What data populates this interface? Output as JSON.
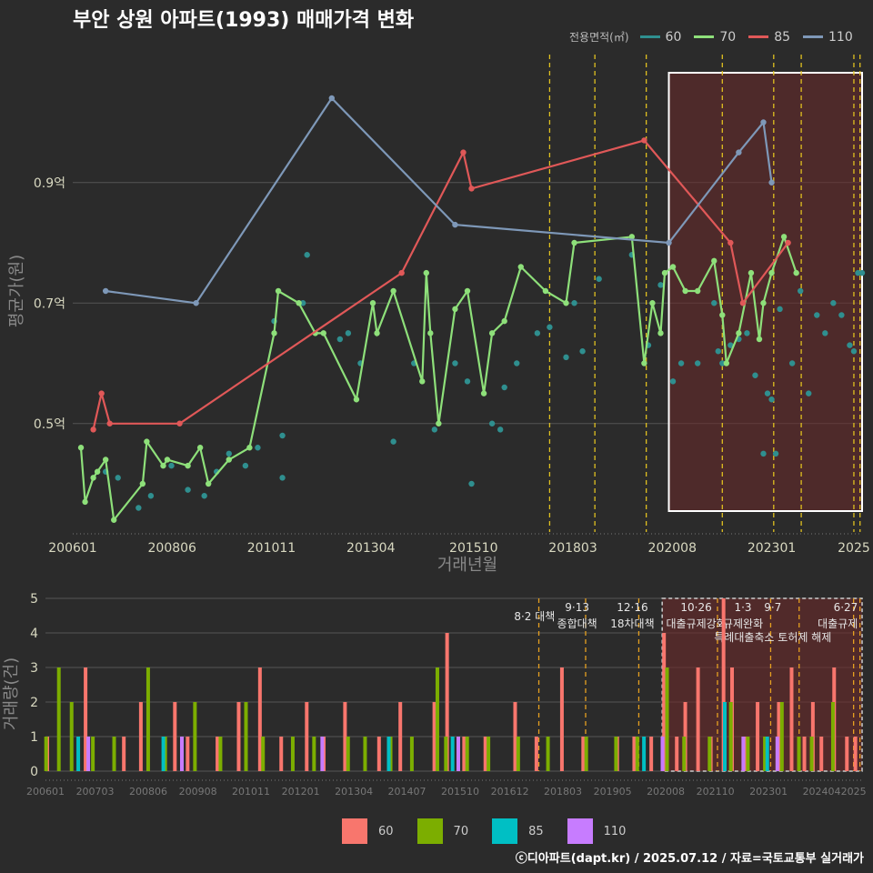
{
  "title": "부안 상원 아파트(1993) 매매가격 변화",
  "footer": "ⓒ디아파트(dapt.kr) / 2025.07.12 / 자료=국토교통부 실거래가",
  "colors": {
    "s60": "#2f8f8f",
    "s70": "#8ee07a",
    "s85": "#e05858",
    "s110": "#7e98b8",
    "b60": "#f8766d",
    "b70": "#7cae00",
    "b85": "#00bfc4",
    "b110": "#c77cff",
    "policy": "#e0c020",
    "highlight": "#6b2a2a",
    "grid": "#555555"
  },
  "legend_top": {
    "title": "전용면적(㎡)",
    "items": [
      "60",
      "70",
      "85",
      "110"
    ]
  },
  "legend_bottom": {
    "items": [
      "60",
      "70",
      "85",
      "110"
    ]
  },
  "chart_data": [
    {
      "type": "line",
      "ylabel": "평균가(원)",
      "xlabel": "거래년월",
      "x_ticks": [
        "200601",
        "200806",
        "201011",
        "201304",
        "201510",
        "201803",
        "202008",
        "202301",
        "2025"
      ],
      "y_ticks": [
        "0.5억",
        "0.7억",
        "0.9억"
      ],
      "ylim": [
        0.32,
        1.12
      ],
      "xlim": [
        2006.0,
        2025.2
      ],
      "highlight_range": [
        2020.5,
        2025.2
      ],
      "policy_lines": [
        2017.6,
        2018.7,
        2019.95,
        2021.8,
        2023.05,
        2023.72,
        2025.0,
        2025.15
      ],
      "series": [
        {
          "name": "60",
          "points": [
            [
              2006.8,
              0.42
            ],
            [
              2007.1,
              0.41
            ],
            [
              2007.6,
              0.36
            ],
            [
              2007.9,
              0.38
            ],
            [
              2008.4,
              0.43
            ],
            [
              2008.8,
              0.39
            ],
            [
              2009.2,
              0.38
            ],
            [
              2009.5,
              0.42
            ],
            [
              2009.8,
              0.45
            ],
            [
              2010.2,
              0.43
            ],
            [
              2010.5,
              0.46
            ],
            [
              2010.9,
              0.67
            ],
            [
              2011.1,
              0.48
            ],
            [
              2011.1,
              0.41
            ],
            [
              2011.6,
              0.7
            ],
            [
              2011.7,
              0.78
            ],
            [
              2012.5,
              0.64
            ],
            [
              2012.7,
              0.65
            ],
            [
              2013.0,
              0.6
            ],
            [
              2013.8,
              0.47
            ],
            [
              2014.3,
              0.6
            ],
            [
              2014.8,
              0.49
            ],
            [
              2015.3,
              0.6
            ],
            [
              2015.6,
              0.57
            ],
            [
              2015.7,
              0.4
            ],
            [
              2016.2,
              0.5
            ],
            [
              2016.4,
              0.49
            ],
            [
              2016.5,
              0.56
            ],
            [
              2016.8,
              0.6
            ],
            [
              2017.3,
              0.65
            ],
            [
              2017.6,
              0.66
            ],
            [
              2018.0,
              0.61
            ],
            [
              2018.2,
              0.7
            ],
            [
              2018.4,
              0.62
            ],
            [
              2018.8,
              0.74
            ],
            [
              2019.6,
              0.78
            ],
            [
              2020.0,
              0.63
            ],
            [
              2020.3,
              0.73
            ],
            [
              2020.6,
              0.57
            ],
            [
              2020.8,
              0.6
            ],
            [
              2021.2,
              0.6
            ],
            [
              2021.6,
              0.7
            ],
            [
              2021.7,
              0.62
            ],
            [
              2021.8,
              0.6
            ],
            [
              2022.0,
              0.63
            ],
            [
              2022.2,
              0.64
            ],
            [
              2022.4,
              0.65
            ],
            [
              2022.6,
              0.58
            ],
            [
              2022.8,
              0.45
            ],
            [
              2022.9,
              0.55
            ],
            [
              2023.0,
              0.54
            ],
            [
              2023.1,
              0.45
            ],
            [
              2023.2,
              0.69
            ],
            [
              2023.5,
              0.6
            ],
            [
              2023.7,
              0.72
            ],
            [
              2023.9,
              0.55
            ],
            [
              2024.1,
              0.68
            ],
            [
              2024.3,
              0.65
            ],
            [
              2024.5,
              0.7
            ],
            [
              2024.7,
              0.68
            ],
            [
              2024.9,
              0.63
            ],
            [
              2025.0,
              0.62
            ],
            [
              2025.1,
              0.75
            ],
            [
              2025.2,
              0.75
            ]
          ]
        },
        {
          "name": "70",
          "points": [
            [
              2006.2,
              0.46
            ],
            [
              2006.3,
              0.37
            ],
            [
              2006.5,
              0.41
            ],
            [
              2006.6,
              0.42
            ],
            [
              2006.8,
              0.44
            ],
            [
              2007.0,
              0.34
            ],
            [
              2007.7,
              0.4
            ],
            [
              2007.8,
              0.47
            ],
            [
              2008.2,
              0.43
            ],
            [
              2008.3,
              0.44
            ],
            [
              2008.8,
              0.43
            ],
            [
              2009.1,
              0.46
            ],
            [
              2009.3,
              0.4
            ],
            [
              2009.8,
              0.44
            ],
            [
              2010.3,
              0.46
            ],
            [
              2010.9,
              0.65
            ],
            [
              2011.0,
              0.72
            ],
            [
              2011.5,
              0.7
            ],
            [
              2011.9,
              0.65
            ],
            [
              2012.1,
              0.65
            ],
            [
              2012.9,
              0.54
            ],
            [
              2013.3,
              0.7
            ],
            [
              2013.4,
              0.65
            ],
            [
              2013.8,
              0.72
            ],
            [
              2014.5,
              0.57
            ],
            [
              2014.6,
              0.75
            ],
            [
              2014.7,
              0.65
            ],
            [
              2014.9,
              0.5
            ],
            [
              2015.3,
              0.69
            ],
            [
              2015.6,
              0.72
            ],
            [
              2016.0,
              0.55
            ],
            [
              2016.2,
              0.65
            ],
            [
              2016.5,
              0.67
            ],
            [
              2016.9,
              0.76
            ],
            [
              2017.5,
              0.72
            ],
            [
              2018.0,
              0.7
            ],
            [
              2018.2,
              0.8
            ],
            [
              2019.6,
              0.81
            ],
            [
              2019.9,
              0.6
            ],
            [
              2020.1,
              0.7
            ],
            [
              2020.3,
              0.65
            ],
            [
              2020.4,
              0.75
            ],
            [
              2020.6,
              0.76
            ],
            [
              2020.9,
              0.72
            ],
            [
              2021.2,
              0.72
            ],
            [
              2021.6,
              0.77
            ],
            [
              2021.8,
              0.68
            ],
            [
              2021.9,
              0.6
            ],
            [
              2022.2,
              0.65
            ],
            [
              2022.5,
              0.75
            ],
            [
              2022.7,
              0.64
            ],
            [
              2022.8,
              0.7
            ],
            [
              2023.0,
              0.75
            ],
            [
              2023.3,
              0.81
            ],
            [
              2023.6,
              0.75
            ]
          ]
        },
        {
          "name": "85",
          "points": [
            [
              2006.5,
              0.49
            ],
            [
              2006.7,
              0.55
            ],
            [
              2006.9,
              0.5
            ],
            [
              2008.6,
              0.5
            ],
            [
              2014.0,
              0.75
            ],
            [
              2015.5,
              0.95
            ],
            [
              2015.7,
              0.89
            ],
            [
              2019.9,
              0.97
            ],
            [
              2022.0,
              0.8
            ],
            [
              2022.3,
              0.7
            ],
            [
              2023.4,
              0.8
            ]
          ]
        },
        {
          "name": "110",
          "points": [
            [
              2006.8,
              0.72
            ],
            [
              2009.0,
              0.7
            ],
            [
              2012.3,
              1.04
            ],
            [
              2015.3,
              0.83
            ],
            [
              2020.5,
              0.8
            ],
            [
              2022.2,
              0.95
            ],
            [
              2022.8,
              1.0
            ],
            [
              2023.0,
              0.9
            ]
          ]
        }
      ]
    },
    {
      "type": "bar",
      "ylabel": "거래량(건)",
      "x_ticks": [
        "200601",
        "200703",
        "200806",
        "200908",
        "201011",
        "201201",
        "201304",
        "201407",
        "201510",
        "201612",
        "201803",
        "201905",
        "202008",
        "202110",
        "202301",
        "202404",
        "2025"
      ],
      "ylim": [
        0,
        5
      ],
      "y_ticks": [
        "0",
        "1",
        "2",
        "3",
        "4",
        "5"
      ],
      "policy_labels": [
        {
          "date": "8·2",
          "text": "대책"
        },
        {
          "date": "9·13",
          "text": "종합대책"
        },
        {
          "date": "12·16",
          "text": "18차대책"
        },
        {
          "date": "10·26",
          "text": "대출규제강화"
        },
        {
          "date": "1·3",
          "text": "규제완화"
        },
        {
          "date": "9·7",
          "text": "특례대출축소 토허제 해제"
        },
        {
          "date": "6·27",
          "text": "대출규제"
        }
      ],
      "series": [
        {
          "name": "60",
          "values": [
            [
              2006.0,
              1
            ],
            [
              2006.9,
              3
            ],
            [
              2007.8,
              1
            ],
            [
              2008.2,
              2
            ],
            [
              2009.0,
              2
            ],
            [
              2009.3,
              1
            ],
            [
              2010.0,
              1
            ],
            [
              2010.5,
              2
            ],
            [
              2011.0,
              3
            ],
            [
              2011.5,
              1
            ],
            [
              2012.1,
              2
            ],
            [
              2012.5,
              1
            ],
            [
              2013.0,
              2
            ],
            [
              2013.8,
              1
            ],
            [
              2014.3,
              2
            ],
            [
              2015.1,
              2
            ],
            [
              2015.4,
              4
            ],
            [
              2015.8,
              1
            ],
            [
              2016.3,
              1
            ],
            [
              2017.0,
              2
            ],
            [
              2017.5,
              1
            ],
            [
              2018.1,
              3
            ],
            [
              2018.6,
              1
            ],
            [
              2019.4,
              1
            ],
            [
              2019.8,
              1
            ],
            [
              2020.2,
              1
            ],
            [
              2020.5,
              4
            ],
            [
              2020.8,
              1
            ],
            [
              2021.0,
              2
            ],
            [
              2021.3,
              3
            ],
            [
              2021.6,
              1
            ],
            [
              2021.9,
              5
            ],
            [
              2022.1,
              3
            ],
            [
              2022.4,
              1
            ],
            [
              2022.7,
              2
            ],
            [
              2022.9,
              1
            ],
            [
              2023.2,
              2
            ],
            [
              2023.5,
              3
            ],
            [
              2023.8,
              1
            ],
            [
              2024.0,
              2
            ],
            [
              2024.2,
              1
            ],
            [
              2024.5,
              3
            ],
            [
              2024.8,
              1
            ],
            [
              2025.0,
              1
            ]
          ]
        },
        {
          "name": "70",
          "values": [
            [
              2006.1,
              1
            ],
            [
              2006.4,
              3
            ],
            [
              2006.7,
              2
            ],
            [
              2007.2,
              1
            ],
            [
              2007.7,
              1
            ],
            [
              2008.5,
              3
            ],
            [
              2008.9,
              1
            ],
            [
              2009.6,
              2
            ],
            [
              2010.2,
              1
            ],
            [
              2010.8,
              2
            ],
            [
              2011.2,
              1
            ],
            [
              2011.9,
              1
            ],
            [
              2012.4,
              1
            ],
            [
              2013.2,
              1
            ],
            [
              2013.6,
              1
            ],
            [
              2014.2,
              1
            ],
            [
              2014.7,
              1
            ],
            [
              2015.3,
              3
            ],
            [
              2015.5,
              1
            ],
            [
              2016.0,
              1
            ],
            [
              2016.5,
              1
            ],
            [
              2017.2,
              1
            ],
            [
              2017.9,
              1
            ],
            [
              2018.8,
              1
            ],
            [
              2019.5,
              1
            ],
            [
              2020.0,
              1
            ],
            [
              2020.7,
              3
            ],
            [
              2021.1,
              1
            ],
            [
              2021.7,
              1
            ],
            [
              2022.2,
              2
            ],
            [
              2022.6,
              1
            ],
            [
              2023.0,
              1
            ],
            [
              2023.4,
              2
            ],
            [
              2023.8,
              1
            ],
            [
              2024.1,
              1
            ],
            [
              2024.6,
              2
            ]
          ]
        },
        {
          "name": "85",
          "values": [
            [
              2006.6,
              1
            ],
            [
              2008.6,
              1
            ],
            [
              2013.9,
              1
            ],
            [
              2015.4,
              1
            ],
            [
              2019.9,
              1
            ],
            [
              2021.8,
              2
            ],
            [
              2022.8,
              1
            ]
          ]
        },
        {
          "name": "110",
          "values": [
            [
              2006.9,
              1
            ],
            [
              2009.1,
              1
            ],
            [
              2012.4,
              1
            ],
            [
              2015.6,
              1
            ],
            [
              2020.4,
              1
            ],
            [
              2022.3,
              1
            ],
            [
              2023.1,
              1
            ]
          ]
        }
      ]
    }
  ]
}
